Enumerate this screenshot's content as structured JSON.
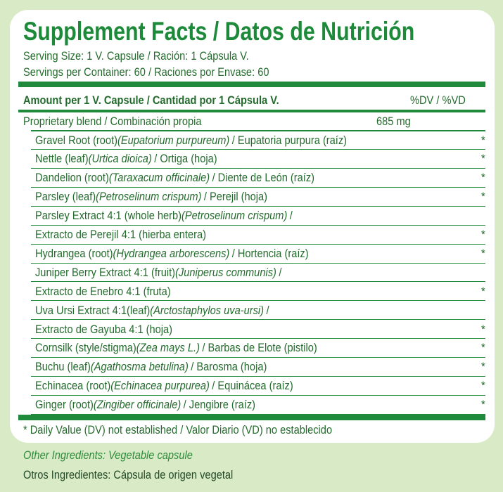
{
  "header": {
    "title": "Supplement Facts / Datos de Nutrición",
    "serving_size": "Serving Size: 1 V. Capsule / Ración: 1 Cápsula V.",
    "servings": "Servings per Container: 60 / Raciones por Envase: 60"
  },
  "table": {
    "amount_header": "Amount per 1 V. Capsule / Cantidad por 1 Cápsula V.",
    "dv_header": "%DV / %VD",
    "blend": {
      "name": "Proprietary blend / Combinación propia",
      "amount": "685 mg"
    },
    "rows": [
      {
        "text": "Gravel Root (root)",
        "latin": "(Eupatorium purpureum)",
        "after": "/ Eupatoria purpura (raíz)",
        "dv": "*"
      },
      {
        "text": "Nettle (leaf)",
        "latin": "(Urtica dioica)",
        "after": "/ Ortiga (hoja)",
        "dv": "*"
      },
      {
        "text": "Dandelion (root)",
        "latin": "(Taraxacum officinale)",
        "after": "/ Diente de León (raíz)",
        "dv": "*"
      },
      {
        "text": "Parsley (leaf)",
        "latin": "(Petroselinum crispum)",
        "after": "/ Perejil (hoja)",
        "dv": "*"
      },
      {
        "text": "Parsley Extract 4:1 (whole herb)",
        "latin": "(Petroselinum crispum)",
        "after": "/"
      },
      {
        "text": "Extracto de Perejil 4:1 (hierba entera)",
        "dv": "*"
      },
      {
        "text": "Hydrangea (root)",
        "latin": "(Hydrangea arborescens)",
        "after": "/ Hortencia (raíz)",
        "dv": "*"
      },
      {
        "text": "Juniper Berry Extract 4:1 (fruit)",
        "latin": "(Juniperus communis)",
        "after": "/"
      },
      {
        "text": "Extracto de Enebro 4:1 (fruta)",
        "dv": "*"
      },
      {
        "text": "Uva Ursi Extract 4:1(leaf)",
        "latin": "(Arctostaphylos uva-ursi)",
        "after": "/"
      },
      {
        "text": "Extracto de Gayuba 4:1 (hoja)",
        "dv": "*"
      },
      {
        "text": "Cornsilk (style/stigma)",
        "latin": "(Zea mays L.)",
        "after": "/ Barbas de Elote (pistilo)",
        "dv": "*"
      },
      {
        "text": "Buchu (leaf)",
        "latin": "(Agathosma betulina)",
        "after": "/ Barosma (hoja)",
        "dv": "*"
      },
      {
        "text": "Echinacea (root)",
        "latin": "(Echinacea purpurea)",
        "after": "/ Equinácea (raíz)",
        "dv": "*"
      },
      {
        "text": "Ginger (root)",
        "latin": "(Zingiber officinale)",
        "after": "/ Jengibre (raíz)",
        "dv": "*"
      }
    ],
    "footnote": "* Daily Value (DV) not established / Valor Diario (VD) no establecido"
  },
  "other": {
    "english": "Other Ingredients: Vegetable capsule",
    "spanish": "Otros Ingredientes: Cápsula de origen vegetal"
  }
}
